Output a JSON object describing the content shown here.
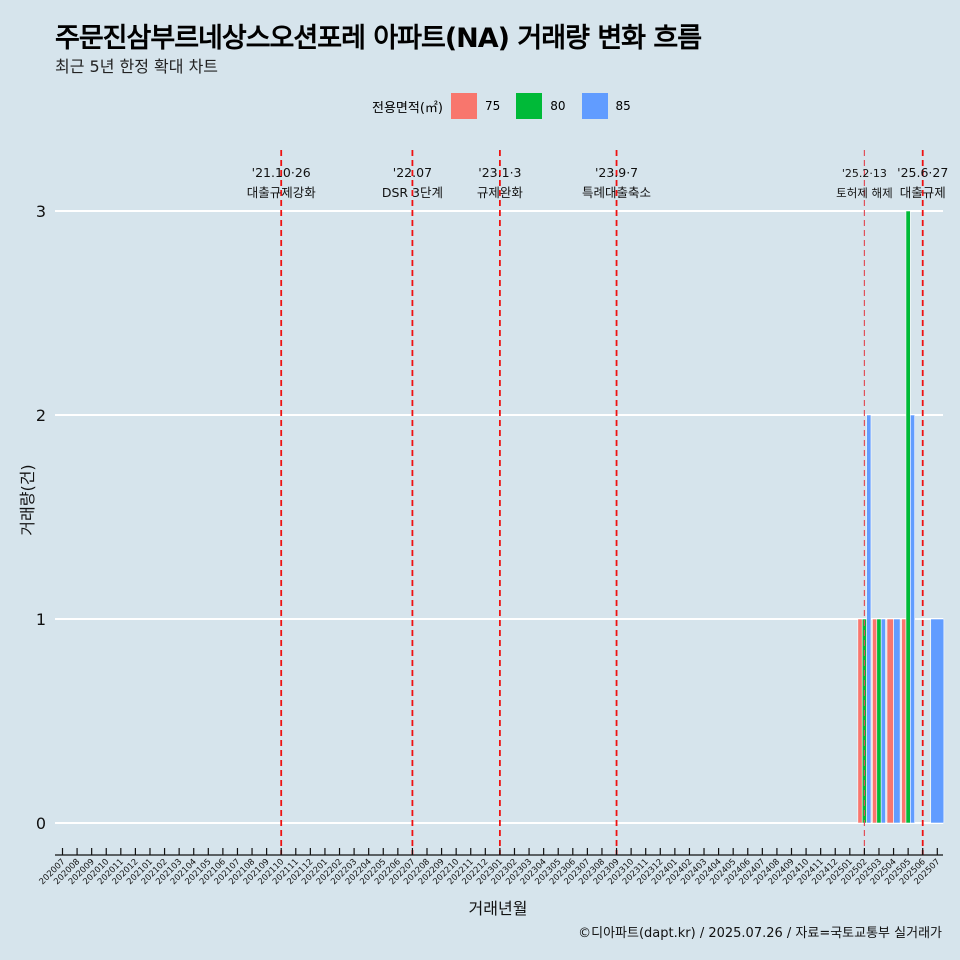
{
  "header": {
    "title": "주문진삼부르네상스오션포레 아파트(NA) 거래량 변화 흐름",
    "subtitle": "최근 5년 한정 확대 차트"
  },
  "legend": {
    "title": "전용면적(㎡)",
    "items": [
      {
        "label": "75",
        "color": "#F8766D"
      },
      {
        "label": "80",
        "color": "#00BA38"
      },
      {
        "label": "85",
        "color": "#619CFF"
      }
    ]
  },
  "caption": "©디아파트(dapt.kr) / 2025.07.26 / 자료=국토교통부 실거래가",
  "chart_data": {
    "type": "bar",
    "title": "주문진삼부르네상스오션포레 아파트(NA) 거래량 변화 흐름",
    "xlabel": "거래년월",
    "ylabel": "거래량(건)",
    "ylim": [
      0,
      3
    ],
    "yticks": [
      "0",
      "1",
      "2",
      "3"
    ],
    "categories": [
      "202007",
      "202008",
      "202009",
      "202010",
      "202011",
      "202012",
      "202101",
      "202102",
      "202103",
      "202104",
      "202105",
      "202106",
      "202107",
      "202108",
      "202109",
      "202110",
      "202111",
      "202112",
      "202201",
      "202202",
      "202203",
      "202204",
      "202205",
      "202206",
      "202207",
      "202208",
      "202209",
      "202210",
      "202211",
      "202212",
      "202301",
      "202302",
      "202303",
      "202304",
      "202305",
      "202306",
      "202307",
      "202308",
      "202309",
      "202310",
      "202311",
      "202312",
      "202401",
      "202402",
      "202403",
      "202404",
      "202405",
      "202406",
      "202407",
      "202408",
      "202409",
      "202410",
      "202411",
      "202412",
      "202501",
      "202502",
      "202503",
      "202504",
      "202505",
      "202506",
      "202507"
    ],
    "bars": [
      {
        "month": "202502",
        "area": "75",
        "count": 1
      },
      {
        "month": "202502",
        "area": "80",
        "count": 1
      },
      {
        "month": "202502",
        "area": "85",
        "count": 2
      },
      {
        "month": "202503",
        "area": "75",
        "count": 1
      },
      {
        "month": "202503",
        "area": "80",
        "count": 1
      },
      {
        "month": "202503",
        "area": "85",
        "count": 1
      },
      {
        "month": "202504",
        "area": "75",
        "count": 1
      },
      {
        "month": "202504",
        "area": "85",
        "count": 1
      },
      {
        "month": "202505",
        "area": "75",
        "count": 1
      },
      {
        "month": "202505",
        "area": "80",
        "count": 3
      },
      {
        "month": "202505",
        "area": "85",
        "count": 2
      },
      {
        "month": "202507",
        "area": "85",
        "count": 1
      }
    ],
    "events": [
      {
        "month": "202110",
        "date": "'21.10·26",
        "label": "대출규제강화"
      },
      {
        "month": "202207",
        "date": "'22.07",
        "label": "DSR 3단계"
      },
      {
        "month": "202301",
        "date": "'23.1·3",
        "label": "규제완화"
      },
      {
        "month": "202309",
        "date": "'23.9·7",
        "label": "특례대출축소"
      },
      {
        "month": "202502",
        "date": "'25.2·13",
        "label": "토허제 해제"
      },
      {
        "month": "202506",
        "date": "'25.6·27",
        "label": "대출규제"
      }
    ]
  }
}
